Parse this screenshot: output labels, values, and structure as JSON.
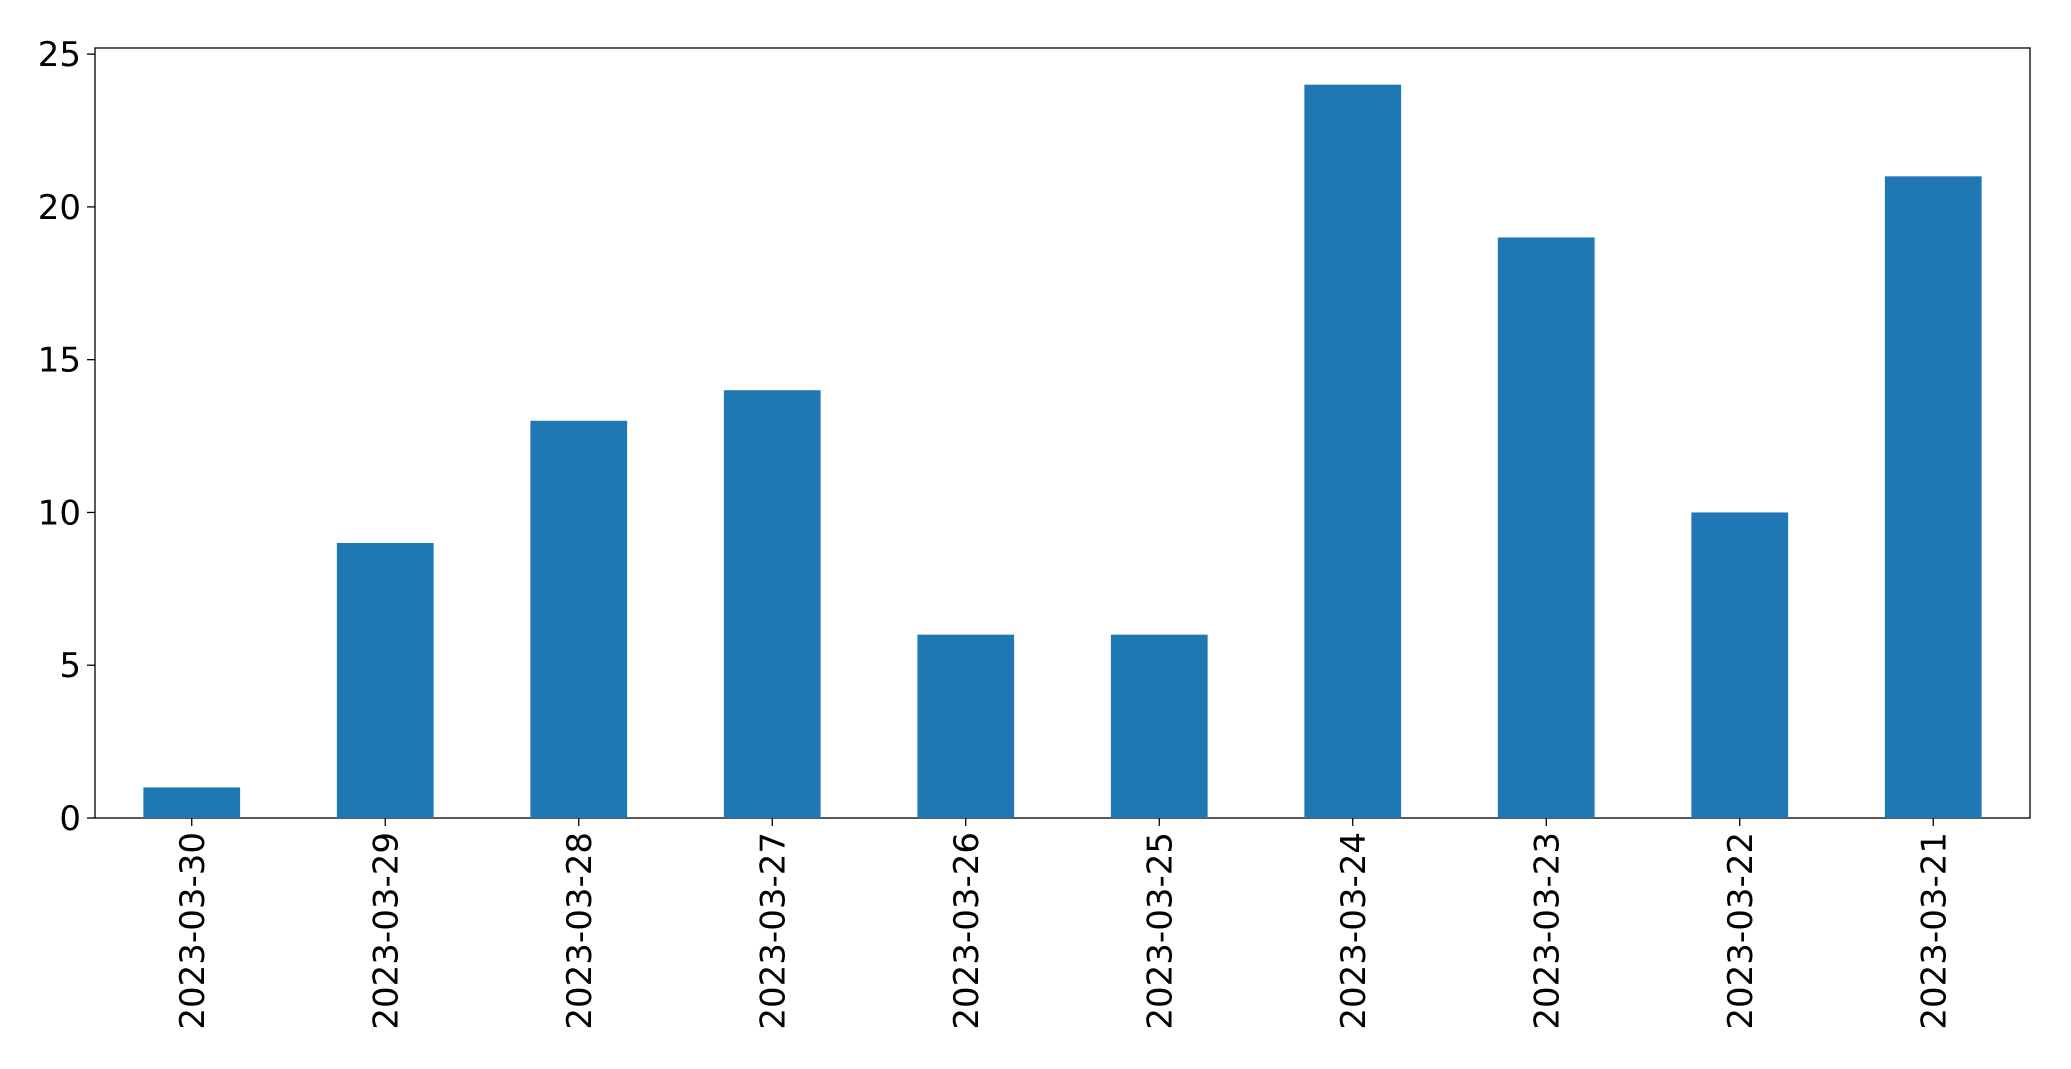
{
  "chart_data": {
    "type": "bar",
    "categories": [
      "2023-03-30",
      "2023-03-29",
      "2023-03-28",
      "2023-03-27",
      "2023-03-26",
      "2023-03-25",
      "2023-03-24",
      "2023-03-23",
      "2023-03-22",
      "2023-03-21"
    ],
    "values": [
      1,
      9,
      13,
      14,
      6,
      6,
      24,
      19,
      10,
      21
    ],
    "color": "#1f77b4",
    "ylim": [
      0,
      25.2
    ],
    "yticks": [
      0,
      5,
      10,
      15,
      20,
      25
    ],
    "grid": false
  }
}
